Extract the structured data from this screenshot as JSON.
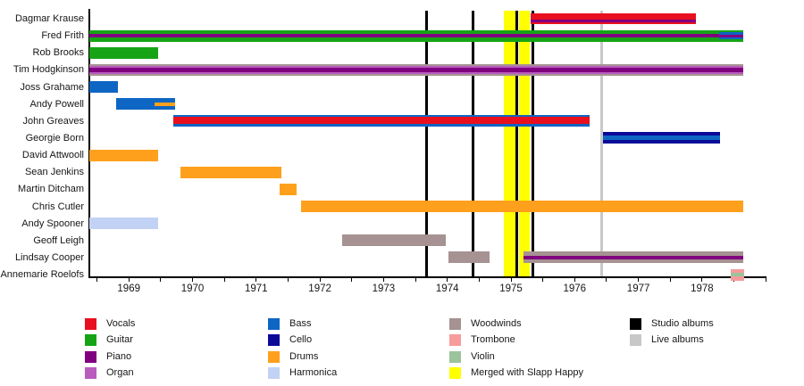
{
  "colors": {
    "vocals": "#e8101e",
    "guitar": "#16a416",
    "piano": "#800080",
    "organ": "#b95cbd",
    "bass": "#0e66c4",
    "cello": "#0a0a99",
    "drums": "#ffa01d",
    "harmonica": "#c2d2f4",
    "woodwinds": "#a69292",
    "trombone": "#f89b9b",
    "violin": "#9cc39c",
    "merge": "#ffff00",
    "studio_album": "#000000",
    "live_album": "#c8c8c8",
    "axis": "#000000",
    "text": "#161616"
  },
  "chart_data": {
    "type": "bar",
    "subtype": "gantt-membership-timeline",
    "x_axis": {
      "unit": "year",
      "min": 1968.38,
      "max": 1979.0,
      "tick_step": 0.5,
      "year_labels": [
        "1969",
        "1970",
        "1971",
        "1972",
        "1973",
        "1974",
        "1975",
        "1976",
        "1977",
        "1978"
      ],
      "year_values": [
        1969,
        1970,
        1971,
        1972,
        1973,
        1974,
        1975,
        1976,
        1977,
        1978
      ]
    },
    "rows": [
      {
        "name": "Dagmar Krause",
        "segments": [
          {
            "start": 1975.31,
            "end": 1977.9,
            "stripes": [
              {
                "instrument": "vocals",
                "weight": 6
              },
              {
                "instrument": "piano",
                "weight": 2.5
              },
              {
                "instrument": "vocals",
                "weight": 2
              }
            ]
          }
        ]
      },
      {
        "name": "Fred Frith",
        "segments": [
          {
            "start": 1968.38,
            "end": 1978.27,
            "stripes": [
              {
                "instrument": "guitar",
                "weight": 3.6
              },
              {
                "instrument": "piano",
                "weight": 3.6
              },
              {
                "instrument": "guitar",
                "weight": 3.6
              }
            ]
          },
          {
            "start": 1978.27,
            "end": 1978.65,
            "stripes": [
              {
                "instrument": "guitar",
                "weight": 2.6
              },
              {
                "instrument": "bass",
                "weight": 2
              },
              {
                "instrument": "piano",
                "weight": 2.8
              },
              {
                "instrument": "bass",
                "weight": 2
              },
              {
                "instrument": "guitar",
                "weight": 2.6
              }
            ]
          }
        ]
      },
      {
        "name": "Rob Brooks",
        "segments": [
          {
            "start": 1968.38,
            "end": 1969.46,
            "stripes": [
              {
                "instrument": "guitar",
                "weight": 1
              }
            ]
          }
        ]
      },
      {
        "name": "Tim Hodgkinson",
        "segments": [
          {
            "start": 1968.38,
            "end": 1978.65,
            "stripes": [
              {
                "instrument": "woodwinds",
                "weight": 1.6
              },
              {
                "instrument": "organ",
                "weight": 2.6
              },
              {
                "instrument": "piano",
                "weight": 4.6
              },
              {
                "instrument": "organ",
                "weight": 2.6
              },
              {
                "instrument": "woodwinds",
                "weight": 1.6
              }
            ]
          }
        ]
      },
      {
        "name": "Joss Grahame",
        "segments": [
          {
            "start": 1968.38,
            "end": 1968.83,
            "stripes": [
              {
                "instrument": "bass",
                "weight": 1
              }
            ]
          }
        ]
      },
      {
        "name": "Andy Powell",
        "segments": [
          {
            "start": 1968.8,
            "end": 1969.4,
            "stripes": [
              {
                "instrument": "bass",
                "weight": 1
              }
            ]
          },
          {
            "start": 1969.4,
            "end": 1969.73,
            "stripes": [
              {
                "instrument": "bass",
                "weight": 4
              },
              {
                "instrument": "drums",
                "weight": 4
              },
              {
                "instrument": "bass",
                "weight": 4
              }
            ]
          }
        ]
      },
      {
        "name": "John Greaves",
        "segments": [
          {
            "start": 1969.7,
            "end": 1976.24,
            "stripes": [
              {
                "instrument": "bass",
                "weight": 2
              },
              {
                "instrument": "vocals",
                "weight": 8
              },
              {
                "instrument": "bass",
                "weight": 3
              }
            ]
          }
        ]
      },
      {
        "name": "Georgie Born",
        "segments": [
          {
            "start": 1976.45,
            "end": 1978.28,
            "stripes": [
              {
                "instrument": "cello",
                "weight": 4
              },
              {
                "instrument": "bass",
                "weight": 5
              },
              {
                "instrument": "cello",
                "weight": 4
              }
            ]
          }
        ]
      },
      {
        "name": "David Attwooll",
        "segments": [
          {
            "start": 1968.38,
            "end": 1969.46,
            "stripes": [
              {
                "instrument": "drums",
                "weight": 1
              }
            ]
          }
        ]
      },
      {
        "name": "Sean Jenkins",
        "segments": [
          {
            "start": 1969.81,
            "end": 1971.4,
            "stripes": [
              {
                "instrument": "drums",
                "weight": 1
              }
            ]
          }
        ]
      },
      {
        "name": "Martin Ditcham",
        "segments": [
          {
            "start": 1971.37,
            "end": 1971.63,
            "stripes": [
              {
                "instrument": "drums",
                "weight": 1
              }
            ]
          }
        ]
      },
      {
        "name": "Chris Cutler",
        "segments": [
          {
            "start": 1971.71,
            "end": 1978.65,
            "stripes": [
              {
                "instrument": "drums",
                "weight": 1
              }
            ]
          }
        ]
      },
      {
        "name": "Andy Spooner",
        "segments": [
          {
            "start": 1968.38,
            "end": 1969.46,
            "stripes": [
              {
                "instrument": "harmonica",
                "weight": 1
              }
            ]
          }
        ]
      },
      {
        "name": "Geoff Leigh",
        "segments": [
          {
            "start": 1972.35,
            "end": 1973.97,
            "stripes": [
              {
                "instrument": "woodwinds",
                "weight": 1
              }
            ]
          }
        ]
      },
      {
        "name": "Lindsay Cooper",
        "segments": [
          {
            "start": 1974.02,
            "end": 1974.67,
            "stripes": [
              {
                "instrument": "woodwinds",
                "weight": 1
              }
            ]
          },
          {
            "start": 1975.19,
            "end": 1978.65,
            "stripes": [
              {
                "instrument": "woodwinds",
                "weight": 4
              },
              {
                "instrument": "piano",
                "weight": 4
              },
              {
                "instrument": "woodwinds",
                "weight": 4
              }
            ]
          }
        ]
      },
      {
        "name": "Annemarie Roelofs",
        "segments": [
          {
            "start": 1978.45,
            "end": 1978.66,
            "stripes": [
              {
                "instrument": "trombone",
                "weight": 4
              },
              {
                "instrument": "violin",
                "weight": 4.5
              },
              {
                "instrument": "trombone",
                "weight": 4
              }
            ]
          }
        ]
      }
    ],
    "annotations": {
      "studio_albums": {
        "label": "Studio albums",
        "years": [
          1973.67,
          1974.4,
          1975.09,
          1975.35
        ]
      },
      "live_albums": {
        "label": "Live albums",
        "years": [
          1976.42
        ]
      },
      "merge_period": {
        "label": "Merged with Slapp Happy",
        "ranges": [
          [
            1974.89,
            1975.07
          ],
          [
            1975.12,
            1975.3
          ]
        ]
      }
    }
  },
  "legend": {
    "columns": [
      {
        "items": [
          {
            "label": "Vocals",
            "color_key": "vocals"
          },
          {
            "label": "Guitar",
            "color_key": "guitar"
          },
          {
            "label": "Piano",
            "color_key": "piano"
          },
          {
            "label": "Organ",
            "color_key": "organ"
          }
        ]
      },
      {
        "items": [
          {
            "label": "Bass",
            "color_key": "bass"
          },
          {
            "label": "Cello",
            "color_key": "cello"
          },
          {
            "label": "Drums",
            "color_key": "drums"
          },
          {
            "label": "Harmonica",
            "color_key": "harmonica"
          }
        ]
      },
      {
        "items": [
          {
            "label": "Woodwinds",
            "color_key": "woodwinds"
          },
          {
            "label": "Trombone",
            "color_key": "trombone"
          },
          {
            "label": "Violin",
            "color_key": "violin"
          },
          {
            "label": "Merged with Slapp Happy",
            "color_key": "merge"
          }
        ]
      },
      {
        "items": [
          {
            "label": "Studio albums",
            "color_key": "studio_album"
          },
          {
            "label": "Live albums",
            "color_key": "live_album"
          }
        ]
      }
    ]
  }
}
